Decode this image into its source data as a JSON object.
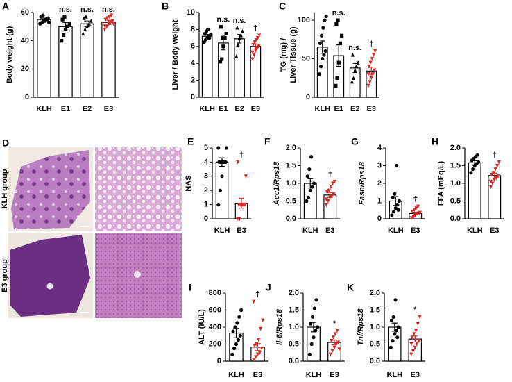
{
  "chart_data": [
    {
      "type": "bar",
      "panel": "A",
      "ylabel": "Body weight (g)",
      "categories": [
        "KLH",
        "E1",
        "E2",
        "E3"
      ],
      "values": [
        55,
        50,
        52,
        53
      ],
      "errors": [
        1,
        3,
        2,
        1.5
      ],
      "colors": [
        "#000000",
        "#000000",
        "#000000",
        "#d42a2a"
      ],
      "markers": [
        "circle",
        "square",
        "triangle",
        "triangle-down"
      ],
      "points": [
        [
          52,
          53,
          54,
          55,
          56,
          57,
          58,
          54,
          55,
          53
        ],
        [
          40,
          44,
          48,
          50,
          52,
          55,
          57
        ],
        [
          45,
          48,
          50,
          52,
          54,
          56,
          57
        ],
        [
          48,
          50,
          52,
          53,
          54,
          55,
          56,
          57,
          58,
          52,
          51
        ]
      ],
      "annotations": [
        null,
        "n.s.",
        "n.s.",
        "n.s."
      ],
      "ylim": [
        0,
        60
      ],
      "yticks": [
        0,
        20,
        40,
        60
      ]
    },
    {
      "type": "bar",
      "panel": "B",
      "ylabel": "Liver / Body weight",
      "categories": [
        "KLH",
        "E1",
        "E2",
        "E3"
      ],
      "values": [
        7.2,
        6.4,
        6.9,
        6.0
      ],
      "errors": [
        0.2,
        0.8,
        0.5,
        0.3
      ],
      "colors": [
        "#000000",
        "#000000",
        "#000000",
        "#d42a2a"
      ],
      "markers": [
        "circle",
        "square",
        "triangle",
        "triangle-down"
      ],
      "points": [
        [
          6.5,
          6.8,
          7,
          7.2,
          7.3,
          7.5,
          7.8,
          8,
          7,
          7.4
        ],
        [
          4.2,
          4.5,
          6,
          7,
          7.5,
          8.3,
          7
        ],
        [
          4.8,
          6.2,
          7,
          7.3,
          7.8,
          8.2
        ],
        [
          4.5,
          5,
          5.5,
          5.8,
          6,
          6.2,
          6.5,
          6.8,
          7,
          7.3,
          5.3
        ]
      ],
      "annotations": [
        null,
        "n.s.",
        "n.s.",
        "†"
      ],
      "ylim": [
        0,
        10
      ],
      "yticks": [
        0,
        2,
        4,
        6,
        8,
        10
      ]
    },
    {
      "type": "bar",
      "panel": "C",
      "ylabel": [
        "TG (mg) /",
        "Liver Tissue (g)"
      ],
      "categories": [
        "KLH",
        "E1",
        "E2",
        "E3"
      ],
      "values": [
        65,
        54,
        38,
        34
      ],
      "errors": [
        8,
        14,
        6,
        5
      ],
      "colors": [
        "#000000",
        "#000000",
        "#000000",
        "#d42a2a"
      ],
      "markers": [
        "circle",
        "square",
        "triangle",
        "triangle-down"
      ],
      "points": [
        [
          30,
          40,
          50,
          55,
          60,
          70,
          80,
          90,
          100,
          105
        ],
        [
          15,
          25,
          45,
          70,
          80,
          95,
          100
        ],
        [
          20,
          25,
          35,
          40,
          45,
          55
        ],
        [
          15,
          20,
          25,
          30,
          35,
          40,
          45,
          50,
          55,
          60,
          30
        ]
      ],
      "annotations": [
        null,
        "n.s.",
        "n.s.",
        "†"
      ],
      "ylim": [
        0,
        110
      ],
      "yticks": [
        0,
        50,
        100
      ]
    },
    {
      "type": "bar",
      "panel": "E",
      "ylabel": "NAS",
      "categories": [
        "KLH",
        "E3"
      ],
      "values": [
        4,
        1.1
      ],
      "errors": [
        0.3,
        0.35
      ],
      "colors": [
        "#000000",
        "#d42a2a"
      ],
      "markers": [
        "circle",
        "triangle-down"
      ],
      "points": [
        [
          1,
          2,
          3,
          4,
          4,
          4,
          4,
          4,
          4,
          5,
          5
        ],
        [
          0,
          0,
          1,
          1,
          1,
          1,
          1,
          1,
          1,
          3,
          4
        ]
      ],
      "annotations": [
        null,
        "†"
      ],
      "ylim": [
        0,
        5
      ],
      "yticks": [
        0,
        1,
        2,
        3,
        4,
        5
      ]
    },
    {
      "type": "bar",
      "panel": "F",
      "ylabel": "Acc1/Rps18",
      "categories": [
        "KLH",
        "E3"
      ],
      "values": [
        1.0,
        0.67
      ],
      "errors": [
        0.13,
        0.07
      ],
      "colors": [
        "#000000",
        "#d42a2a"
      ],
      "markers": [
        "circle",
        "triangle-down"
      ],
      "points": [
        [
          0.5,
          0.6,
          0.8,
          0.9,
          1.0,
          1.2,
          1.4,
          1.75
        ],
        [
          0.4,
          0.5,
          0.6,
          0.65,
          0.7,
          0.75,
          0.8,
          0.9,
          1.0,
          1.05,
          0.55
        ]
      ],
      "annotations": [
        null,
        "†"
      ],
      "ylim": [
        0,
        2
      ],
      "yticks": [
        {
          "value": 0,
          "label": "0.0"
        },
        0.5,
        {
          "value": 1,
          "label": "1.0"
        },
        1.5,
        {
          "value": 2,
          "label": "2.0"
        }
      ]
    },
    {
      "type": "bar",
      "panel": "G",
      "ylabel": "Fasn/Rps18",
      "categories": [
        "KLH",
        "E3"
      ],
      "values": [
        1.0,
        0.3
      ],
      "errors": [
        0.25,
        0.07
      ],
      "colors": [
        "#000000",
        "#d42a2a"
      ],
      "markers": [
        "circle",
        "triangle-down"
      ],
      "points": [
        [
          0.2,
          0.4,
          0.6,
          0.8,
          1.0,
          1.2,
          1.4,
          3.0,
          0.5
        ],
        [
          0.05,
          0.1,
          0.2,
          0.3,
          0.3,
          0.4,
          0.5,
          0.6,
          0.7,
          0.35
        ]
      ],
      "annotations": [
        null,
        "†"
      ],
      "ylim": [
        0,
        4
      ],
      "yticks": [
        0,
        1,
        2,
        3,
        4
      ]
    },
    {
      "type": "bar",
      "panel": "H",
      "ylabel": "FFA (mEq/L)",
      "categories": [
        "KLH",
        "E3"
      ],
      "values": [
        1.58,
        1.22
      ],
      "errors": [
        0.06,
        0.07
      ],
      "colors": [
        "#000000",
        "#d42a2a"
      ],
      "markers": [
        "circle",
        "triangle-down"
      ],
      "points": [
        [
          1.3,
          1.4,
          1.5,
          1.55,
          1.6,
          1.65,
          1.7,
          1.75,
          1.8
        ],
        [
          0.9,
          1.0,
          1.1,
          1.15,
          1.2,
          1.25,
          1.3,
          1.4,
          1.5,
          1.6,
          1.05
        ]
      ],
      "annotations": [
        null,
        "†"
      ],
      "ylim": [
        0,
        2
      ],
      "yticks": [
        {
          "value": 0,
          "label": "0.0"
        },
        0.5,
        {
          "value": 1,
          "label": "1.0"
        },
        1.5,
        {
          "value": 2,
          "label": "2.0"
        }
      ]
    },
    {
      "type": "bar",
      "panel": "I",
      "ylabel": "ALT (IU/L)",
      "categories": [
        "KLH",
        "E3"
      ],
      "values": [
        330,
        165
      ],
      "errors": [
        55,
        40
      ],
      "colors": [
        "#000000",
        "#d42a2a"
      ],
      "markers": [
        "circle",
        "triangle-down"
      ],
      "points": [
        [
          80,
          150,
          200,
          250,
          300,
          350,
          400,
          450,
          520,
          600
        ],
        [
          20,
          50,
          80,
          100,
          150,
          180,
          200,
          250,
          380,
          480,
          700
        ]
      ],
      "annotations": [
        null,
        "†"
      ],
      "ylim": [
        0,
        800
      ],
      "yticks": [
        0,
        200,
        400,
        600,
        800
      ]
    },
    {
      "type": "bar",
      "panel": "J",
      "ylabel": "Il-6/Rps18",
      "categories": [
        "KLH",
        "E3"
      ],
      "values": [
        1.0,
        0.55
      ],
      "errors": [
        0.14,
        0.07
      ],
      "colors": [
        "#000000",
        "#d42a2a"
      ],
      "markers": [
        "circle",
        "triangle-down"
      ],
      "points": [
        [
          0.2,
          0.5,
          0.7,
          0.9,
          1.0,
          1.1,
          1.3,
          1.55,
          1.8
        ],
        [
          0.2,
          0.3,
          0.4,
          0.5,
          0.55,
          0.6,
          0.7,
          0.8,
          0.9,
          0.35
        ]
      ],
      "annotations": [
        null,
        "*"
      ],
      "ylim": [
        0,
        2
      ],
      "yticks": [
        {
          "value": 0,
          "label": "0.0"
        },
        0.5,
        {
          "value": 1,
          "label": "1.0"
        },
        1.5,
        {
          "value": 2,
          "label": "2.0"
        }
      ]
    },
    {
      "type": "bar",
      "panel": "K",
      "ylabel": "Tnf/Rps18",
      "categories": [
        "KLH",
        "E3"
      ],
      "values": [
        1.0,
        0.65
      ],
      "errors": [
        0.12,
        0.09
      ],
      "colors": [
        "#000000",
        "#d42a2a"
      ],
      "markers": [
        "circle",
        "triangle-down"
      ],
      "points": [
        [
          0.4,
          0.6,
          0.8,
          0.9,
          1.0,
          1.2,
          1.3,
          1.8,
          0.7
        ],
        [
          0.2,
          0.3,
          0.4,
          0.5,
          0.6,
          0.7,
          0.8,
          0.9,
          1.1,
          1.3,
          0.5
        ]
      ],
      "annotations": [
        null,
        "*"
      ],
      "ylim": [
        0,
        2
      ],
      "yticks": [
        {
          "value": 0,
          "label": "0.0"
        },
        0.5,
        {
          "value": 1,
          "label": "1.0"
        },
        1.5,
        {
          "value": 2,
          "label": "2.0"
        }
      ]
    }
  ],
  "micrographs": {
    "panel": "D",
    "rows": [
      "KLH group",
      "E3 group"
    ]
  }
}
